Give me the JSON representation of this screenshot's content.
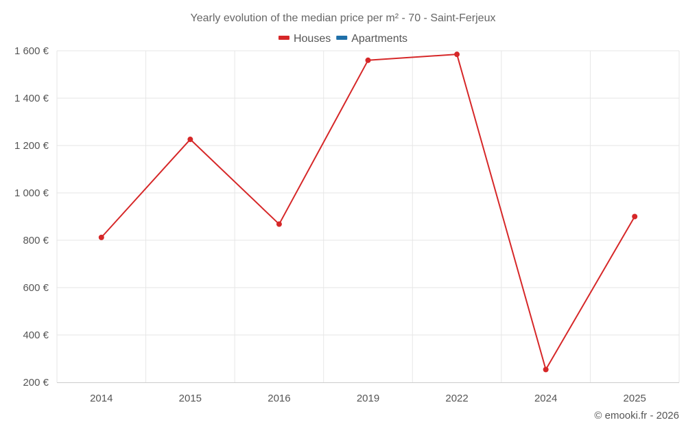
{
  "chart_data": {
    "type": "line",
    "title": "Yearly evolution of the median price per m² - 70 - Saint-Ferjeux",
    "categories": [
      "2014",
      "2015",
      "2016",
      "2019",
      "2022",
      "2024",
      "2025"
    ],
    "series": [
      {
        "name": "Houses",
        "color": "#d62728",
        "values": [
          812,
          1226,
          868,
          1560,
          1585,
          254,
          900
        ]
      },
      {
        "name": "Apartments",
        "color": "#1f6fa8",
        "values": [
          null,
          null,
          null,
          null,
          null,
          null,
          null
        ]
      }
    ],
    "ylim": [
      200,
      1600
    ],
    "yticks": [
      200,
      400,
      600,
      800,
      1000,
      1200,
      1400,
      1600
    ],
    "ytick_labels": [
      "200 €",
      "400 €",
      "600 €",
      "800 €",
      "1 000 €",
      "1 200 €",
      "1 400 €",
      "1 600 €"
    ],
    "grid": true,
    "legend_position": "top-center",
    "credits": "© emooki.fr - 2026"
  }
}
